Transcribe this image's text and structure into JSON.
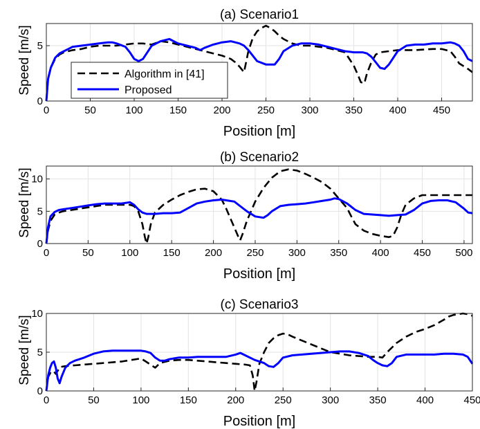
{
  "chart_data": [
    {
      "type": "line",
      "title": "(a) Scenario1",
      "xlabel": "Position [m]",
      "ylabel": "Speed [m/s]",
      "xlim": [
        0,
        485
      ],
      "ylim": [
        0,
        7
      ],
      "xticks": [
        0,
        50,
        100,
        150,
        200,
        250,
        300,
        350,
        400,
        450
      ],
      "yticks": [
        0,
        5
      ],
      "grid": true,
      "legend": {
        "position": "middle-left",
        "entries": [
          "Algorithm in [41]",
          "Proposed"
        ]
      },
      "series": [
        {
          "name": "Algorithm in [41]",
          "color": "#000000",
          "style": "dashed",
          "x": [
            0,
            2,
            5,
            10,
            15,
            20,
            25,
            30,
            40,
            50,
            60,
            70,
            80,
            90,
            100,
            110,
            120,
            130,
            140,
            150,
            160,
            170,
            180,
            190,
            200,
            210,
            215,
            220,
            225,
            230,
            235,
            240,
            245,
            250,
            255,
            260,
            265,
            270,
            280,
            290,
            300,
            310,
            320,
            330,
            340,
            350,
            355,
            358,
            362,
            365,
            370,
            375,
            380,
            390,
            400,
            420,
            440,
            450,
            460,
            465,
            470,
            480,
            485
          ],
          "y": [
            0,
            2.0,
            3.0,
            3.8,
            4.2,
            4.4,
            4.5,
            4.6,
            4.7,
            4.9,
            5.0,
            5.0,
            5.0,
            5.1,
            5.2,
            5.2,
            5.1,
            5.4,
            5.3,
            5.1,
            4.9,
            4.7,
            4.5,
            4.3,
            4.1,
            3.8,
            3.5,
            3.1,
            2.6,
            4.5,
            5.7,
            6.3,
            6.6,
            6.8,
            6.6,
            6.3,
            5.9,
            5.6,
            5.2,
            5.0,
            5.0,
            4.9,
            4.8,
            4.6,
            4.4,
            3.2,
            2.3,
            1.7,
            1.6,
            2.5,
            3.5,
            4.2,
            4.4,
            4.5,
            4.6,
            4.6,
            4.7,
            4.7,
            4.5,
            4.0,
            3.4,
            2.9,
            2.6
          ]
        },
        {
          "name": "Proposed",
          "color": "#0000ff",
          "style": "solid",
          "x": [
            0,
            2,
            5,
            10,
            15,
            20,
            25,
            30,
            40,
            50,
            60,
            70,
            75,
            80,
            90,
            95,
            100,
            105,
            110,
            115,
            120,
            130,
            140,
            150,
            160,
            170,
            175,
            180,
            190,
            200,
            210,
            220,
            225,
            230,
            240,
            250,
            260,
            265,
            270,
            280,
            290,
            300,
            310,
            320,
            330,
            340,
            350,
            360,
            365,
            370,
            375,
            380,
            385,
            390,
            400,
            410,
            420,
            430,
            440,
            450,
            460,
            465,
            470,
            475,
            480,
            485
          ],
          "y": [
            0,
            2.0,
            3.0,
            3.9,
            4.3,
            4.5,
            4.7,
            4.9,
            5.0,
            5.1,
            5.2,
            5.3,
            5.3,
            5.2,
            4.9,
            4.4,
            3.8,
            3.6,
            3.8,
            4.4,
            5.0,
            5.4,
            5.6,
            5.2,
            5.0,
            4.8,
            4.6,
            4.8,
            5.1,
            5.3,
            5.4,
            5.2,
            5.0,
            4.6,
            3.6,
            3.3,
            3.3,
            3.8,
            4.5,
            5.0,
            5.2,
            5.2,
            5.1,
            4.9,
            4.7,
            4.5,
            4.4,
            4.4,
            4.3,
            4.0,
            3.5,
            3.0,
            2.9,
            3.3,
            4.5,
            5.0,
            5.1,
            5.1,
            5.2,
            5.2,
            5.3,
            5.2,
            5.0,
            4.5,
            3.8,
            3.6
          ]
        }
      ]
    },
    {
      "type": "line",
      "title": "(b) Scenario2",
      "xlabel": "Position [m]",
      "ylabel": "Speed [m/s]",
      "xlim": [
        0,
        510
      ],
      "ylim": [
        0,
        12
      ],
      "xticks": [
        0,
        50,
        100,
        150,
        200,
        250,
        300,
        350,
        400,
        450,
        500
      ],
      "yticks": [
        0,
        5,
        10
      ],
      "grid": true,
      "series": [
        {
          "name": "Algorithm in [41]",
          "color": "#000000",
          "style": "dashed",
          "x": [
            0,
            2,
            5,
            10,
            15,
            20,
            30,
            40,
            50,
            60,
            70,
            80,
            90,
            100,
            105,
            110,
            115,
            118,
            120,
            122,
            125,
            130,
            140,
            150,
            160,
            170,
            180,
            190,
            200,
            210,
            215,
            220,
            225,
            230,
            232,
            235,
            240,
            250,
            260,
            270,
            280,
            290,
            300,
            310,
            320,
            330,
            340,
            350,
            360,
            365,
            370,
            380,
            390,
            400,
            410,
            415,
            420,
            425,
            430,
            440,
            450,
            470,
            490,
            510
          ],
          "y": [
            0,
            2.0,
            3.5,
            4.5,
            4.8,
            5.0,
            5.2,
            5.4,
            5.6,
            5.8,
            6.0,
            6.0,
            6.0,
            6.0,
            5.8,
            5.0,
            3.0,
            1.0,
            0,
            1.0,
            3.0,
            4.8,
            6.0,
            6.8,
            7.5,
            8.0,
            8.4,
            8.5,
            8.1,
            6.8,
            5.5,
            4.0,
            2.5,
            1.0,
            0.5,
            1.5,
            3.5,
            6.5,
            8.6,
            10.2,
            11.2,
            11.5,
            11.3,
            10.8,
            10.2,
            9.5,
            8.5,
            7.0,
            5.5,
            4.2,
            3.0,
            2.0,
            1.5,
            1.2,
            1.0,
            1.2,
            2.5,
            4.5,
            6.0,
            7.0,
            7.5,
            7.5,
            7.5,
            7.5
          ]
        },
        {
          "name": "Proposed",
          "color": "#0000ff",
          "style": "solid",
          "x": [
            0,
            2,
            5,
            10,
            15,
            20,
            30,
            40,
            50,
            60,
            70,
            80,
            90,
            100,
            105,
            110,
            115,
            120,
            130,
            140,
            150,
            160,
            170,
            180,
            190,
            200,
            210,
            220,
            225,
            230,
            240,
            250,
            260,
            265,
            270,
            280,
            290,
            300,
            310,
            320,
            330,
            340,
            345,
            350,
            360,
            370,
            380,
            390,
            400,
            410,
            420,
            430,
            440,
            450,
            460,
            470,
            480,
            490,
            500,
            505,
            510
          ],
          "y": [
            0,
            2.5,
            4.2,
            4.9,
            5.2,
            5.3,
            5.5,
            5.7,
            5.9,
            6.1,
            6.2,
            6.2,
            6.2,
            6.4,
            6.0,
            5.3,
            4.8,
            4.6,
            4.6,
            4.7,
            4.7,
            4.8,
            5.5,
            6.2,
            6.5,
            6.7,
            6.8,
            6.6,
            6.5,
            6.0,
            5.0,
            4.2,
            4.0,
            4.4,
            5.0,
            5.8,
            6.0,
            6.1,
            6.2,
            6.4,
            6.6,
            6.8,
            7.0,
            6.9,
            6.2,
            5.2,
            4.6,
            4.5,
            4.4,
            4.3,
            4.4,
            4.5,
            5.2,
            6.2,
            6.6,
            6.7,
            6.7,
            6.4,
            5.4,
            4.8,
            4.7
          ]
        }
      ]
    },
    {
      "type": "line",
      "title": "(c) Scenario3",
      "xlabel": "Position [m]",
      "ylabel": "Speed [m/s]",
      "xlim": [
        0,
        450
      ],
      "ylim": [
        0,
        10
      ],
      "xticks": [
        0,
        50,
        100,
        150,
        200,
        250,
        300,
        350,
        400,
        450
      ],
      "yticks": [
        0,
        5,
        10
      ],
      "grid": true,
      "series": [
        {
          "name": "Algorithm in [41]",
          "color": "#000000",
          "style": "dashed",
          "x": [
            0,
            2,
            5,
            8,
            10,
            12,
            15,
            20,
            30,
            40,
            50,
            60,
            70,
            80,
            90,
            100,
            105,
            110,
            115,
            120,
            130,
            140,
            150,
            160,
            170,
            180,
            190,
            200,
            210,
            215,
            218,
            220,
            222,
            225,
            230,
            235,
            240,
            245,
            250,
            255,
            260,
            270,
            280,
            290,
            300,
            310,
            320,
            330,
            340,
            350,
            355,
            360,
            370,
            380,
            390,
            400,
            410,
            420,
            425,
            430,
            435,
            440,
            445,
            450
          ],
          "y": [
            0,
            1.8,
            2.5,
            2.5,
            2.2,
            2.6,
            3.1,
            3.2,
            3.3,
            3.4,
            3.5,
            3.6,
            3.7,
            3.8,
            4.0,
            4.2,
            3.8,
            3.4,
            3.0,
            3.6,
            3.9,
            4.0,
            4.0,
            3.9,
            3.8,
            3.7,
            3.6,
            3.5,
            3.4,
            3.3,
            2.0,
            0,
            1.2,
            3.5,
            5.0,
            6.2,
            6.8,
            7.2,
            7.4,
            7.3,
            7.0,
            6.5,
            6.0,
            5.5,
            5.0,
            4.8,
            4.6,
            4.5,
            4.4,
            4.4,
            4.3,
            5.0,
            6.2,
            7.0,
            7.6,
            8.0,
            8.5,
            9.2,
            9.6,
            9.8,
            9.9,
            10.0,
            9.9,
            9.7
          ]
        },
        {
          "name": "Proposed",
          "color": "#0000ff",
          "style": "solid",
          "x": [
            0,
            2,
            4,
            6,
            8,
            10,
            12,
            14,
            16,
            20,
            25,
            30,
            40,
            50,
            60,
            70,
            80,
            90,
            100,
            105,
            110,
            115,
            120,
            125,
            130,
            140,
            150,
            160,
            170,
            180,
            190,
            200,
            205,
            210,
            220,
            225,
            230,
            235,
            240,
            245,
            250,
            260,
            270,
            280,
            290,
            300,
            310,
            320,
            330,
            340,
            345,
            350,
            355,
            360,
            365,
            370,
            380,
            390,
            400,
            410,
            420,
            430,
            440,
            445,
            450
          ],
          "y": [
            0,
            2.0,
            3.0,
            3.6,
            3.8,
            3.0,
            1.6,
            1.0,
            1.8,
            3.0,
            3.6,
            3.9,
            4.3,
            4.8,
            5.1,
            5.2,
            5.2,
            5.2,
            5.2,
            5.1,
            4.9,
            4.3,
            3.9,
            3.9,
            4.1,
            4.3,
            4.3,
            4.4,
            4.4,
            4.4,
            4.4,
            4.7,
            4.9,
            4.6,
            4.0,
            3.8,
            3.6,
            3.2,
            3.1,
            3.6,
            4.3,
            4.6,
            4.7,
            4.8,
            4.9,
            5.0,
            5.1,
            5.1,
            4.9,
            4.5,
            4.0,
            3.6,
            3.3,
            3.2,
            3.6,
            4.4,
            4.7,
            4.7,
            4.7,
            4.7,
            4.8,
            4.8,
            4.7,
            4.4,
            3.5
          ]
        }
      ]
    }
  ]
}
